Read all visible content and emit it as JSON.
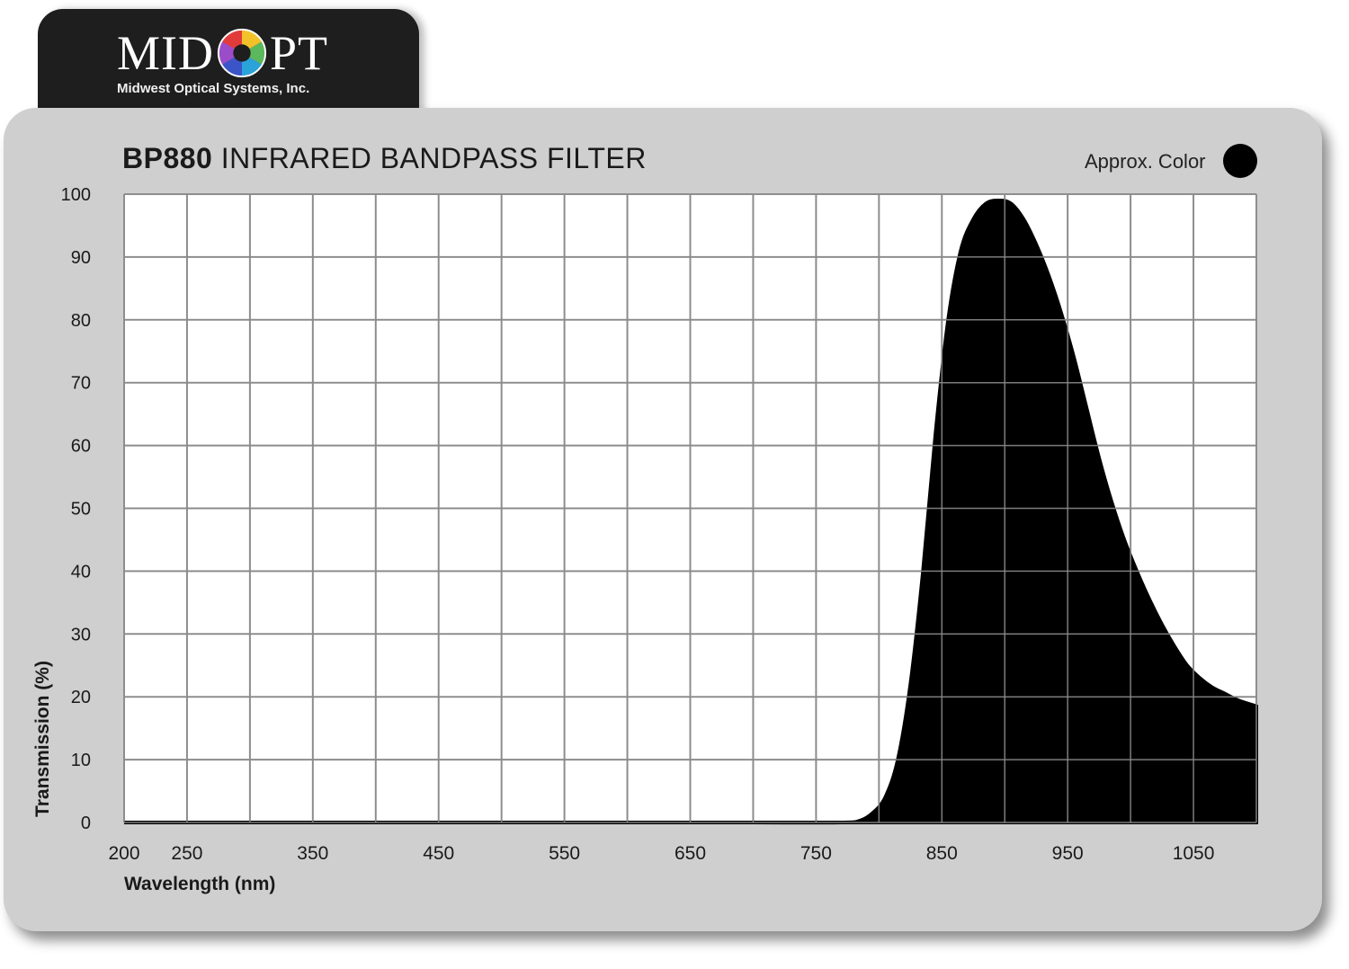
{
  "logo": {
    "word_left": "MID",
    "word_right": "PT",
    "tagline": "Midwest Optical Systems, Inc.",
    "mark_icon": "color-wheel-icon"
  },
  "header": {
    "model": "BP880",
    "name": "INFRARED BANDPASS FILTER",
    "approx_label": "Approx. Color",
    "approx_color": "#000000"
  },
  "chart_data": {
    "type": "area",
    "title": "BP880 INFRARED BANDPASS FILTER",
    "xlabel": "Wavelength (nm)",
    "ylabel": "Transmission (%)",
    "xlim": [
      200,
      1100
    ],
    "ylim": [
      0,
      100
    ],
    "x_ticks": [
      200,
      250,
      350,
      450,
      550,
      650,
      750,
      850,
      950,
      1050
    ],
    "y_ticks": [
      0,
      10,
      20,
      30,
      40,
      50,
      60,
      70,
      80,
      90,
      100
    ],
    "grid": true,
    "fill_color": "#000000",
    "series": [
      {
        "values": [
          [
            200,
            0
          ],
          [
            300,
            0
          ],
          [
            400,
            0
          ],
          [
            500,
            0
          ],
          [
            600,
            0
          ],
          [
            700,
            0
          ],
          [
            770,
            0
          ],
          [
            785,
            0.3
          ],
          [
            795,
            1.5
          ],
          [
            805,
            4
          ],
          [
            815,
            10
          ],
          [
            825,
            22
          ],
          [
            835,
            40
          ],
          [
            845,
            62
          ],
          [
            855,
            80
          ],
          [
            865,
            91
          ],
          [
            875,
            96
          ],
          [
            885,
            98.5
          ],
          [
            895,
            99
          ],
          [
            905,
            98.5
          ],
          [
            915,
            96
          ],
          [
            925,
            92
          ],
          [
            935,
            87
          ],
          [
            945,
            81
          ],
          [
            955,
            74
          ],
          [
            965,
            66
          ],
          [
            975,
            58
          ],
          [
            985,
            51
          ],
          [
            995,
            45
          ],
          [
            1005,
            40
          ],
          [
            1015,
            35.5
          ],
          [
            1025,
            31.5
          ],
          [
            1035,
            28
          ],
          [
            1045,
            25
          ],
          [
            1055,
            23
          ],
          [
            1065,
            21.5
          ],
          [
            1075,
            20.5
          ],
          [
            1085,
            19.5
          ],
          [
            1100,
            18.5
          ]
        ]
      }
    ]
  }
}
